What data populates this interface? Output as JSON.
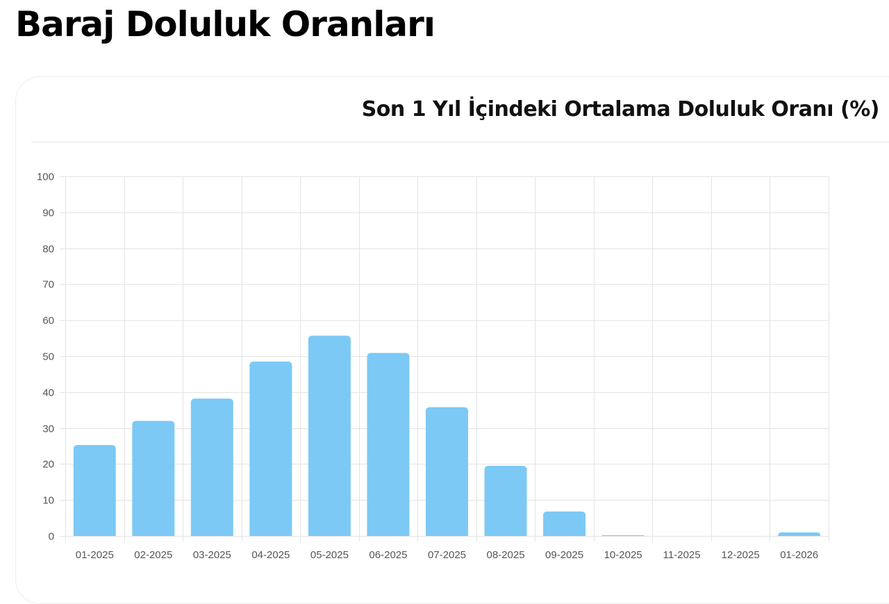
{
  "page": {
    "title": "Baraj Doluluk Oranları"
  },
  "card": {
    "title": "Son 1 Yıl İçindeki Ortalama Doluluk Oranı (%)"
  },
  "colors": {
    "bar": "#7cc9f6",
    "grid": "#e3e3e3",
    "text": "#555555"
  },
  "chart_data": {
    "type": "bar",
    "title": "Son 1 Yıl İçindeki Ortalama Doluluk Oranı (%)",
    "xlabel": "",
    "ylabel": "",
    "categories": [
      "01-2025",
      "02-2025",
      "03-2025",
      "04-2025",
      "05-2025",
      "06-2025",
      "07-2025",
      "08-2025",
      "09-2025",
      "10-2025",
      "11-2025",
      "12-2025",
      "01-2026"
    ],
    "values": [
      25.3,
      32.0,
      38.2,
      48.5,
      55.7,
      50.9,
      35.8,
      19.5,
      6.8,
      0.2,
      0.0,
      0.0,
      1.0
    ],
    "ylim": [
      0,
      100
    ],
    "yticks": [
      0,
      10,
      20,
      30,
      40,
      50,
      60,
      70,
      80,
      90,
      100
    ],
    "grid": true,
    "legend": "none"
  }
}
